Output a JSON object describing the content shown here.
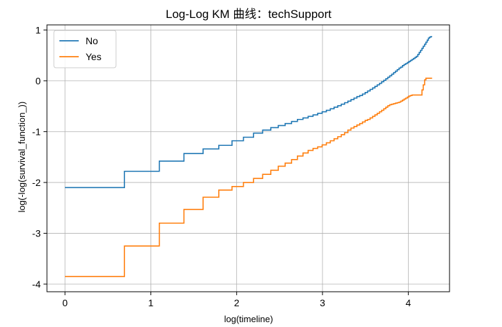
{
  "chart_data": {
    "type": "line",
    "step": true,
    "title": "Log-Log KM 曲线：techSupport",
    "xlabel": "log(timeline)",
    "ylabel": "log(-log(survival_function_))",
    "xlim": [
      -0.21,
      4.48
    ],
    "ylim": [
      -4.15,
      1.1
    ],
    "xticks": [
      0,
      1,
      2,
      3,
      4
    ],
    "xtick_labels": [
      "0",
      "1",
      "2",
      "3",
      "4"
    ],
    "yticks": [
      -4,
      -3,
      -2,
      -1,
      0,
      1
    ],
    "ytick_labels": [
      "-4",
      "-3",
      "-2",
      "-1",
      "0",
      "1"
    ],
    "grid": true,
    "legend": {
      "placement": "top-left",
      "entries": [
        "No",
        "Yes"
      ]
    },
    "series": [
      {
        "name": "No",
        "color": "#1f77b4",
        "x": [
          0.0,
          0.693,
          1.099,
          1.386,
          1.609,
          1.792,
          1.946,
          2.079,
          2.197,
          2.303,
          2.398,
          2.485,
          2.565,
          2.64,
          2.708,
          2.773,
          2.833,
          2.89,
          2.944,
          2.996,
          3.045,
          3.091,
          3.135,
          3.178,
          3.219,
          3.258,
          3.296,
          3.332,
          3.367,
          3.401,
          3.434,
          3.466,
          3.497,
          3.526,
          3.555,
          3.584,
          3.611,
          3.638,
          3.664,
          3.689,
          3.714,
          3.738,
          3.761,
          3.784,
          3.807,
          3.829,
          3.85,
          3.871,
          3.892,
          3.912,
          3.932,
          3.951,
          3.97,
          3.989,
          4.007,
          4.025,
          4.043,
          4.06,
          4.078,
          4.094,
          4.111,
          4.127,
          4.143,
          4.159,
          4.174,
          4.19,
          4.205,
          4.22,
          4.234,
          4.248,
          4.263,
          4.277
        ],
        "y": [
          -2.1,
          -1.78,
          -1.58,
          -1.43,
          -1.34,
          -1.27,
          -1.18,
          -1.11,
          -1.03,
          -0.97,
          -0.92,
          -0.88,
          -0.84,
          -0.8,
          -0.76,
          -0.73,
          -0.7,
          -0.67,
          -0.64,
          -0.61,
          -0.58,
          -0.55,
          -0.52,
          -0.49,
          -0.46,
          -0.43,
          -0.4,
          -0.37,
          -0.34,
          -0.31,
          -0.29,
          -0.26,
          -0.23,
          -0.2,
          -0.17,
          -0.14,
          -0.11,
          -0.08,
          -0.05,
          -0.02,
          0.01,
          0.04,
          0.07,
          0.1,
          0.13,
          0.16,
          0.19,
          0.22,
          0.25,
          0.27,
          0.3,
          0.32,
          0.34,
          0.36,
          0.38,
          0.4,
          0.42,
          0.44,
          0.46,
          0.48,
          0.52,
          0.56,
          0.6,
          0.64,
          0.68,
          0.72,
          0.76,
          0.8,
          0.84,
          0.86,
          0.87,
          0.87
        ]
      },
      {
        "name": "Yes",
        "color": "#ff7f0e",
        "x": [
          0.0,
          0.693,
          1.099,
          1.386,
          1.609,
          1.792,
          1.946,
          2.079,
          2.197,
          2.303,
          2.398,
          2.485,
          2.565,
          2.64,
          2.708,
          2.773,
          2.833,
          2.89,
          2.944,
          2.996,
          3.045,
          3.091,
          3.135,
          3.178,
          3.219,
          3.258,
          3.296,
          3.332,
          3.367,
          3.401,
          3.434,
          3.466,
          3.497,
          3.526,
          3.555,
          3.584,
          3.611,
          3.638,
          3.664,
          3.689,
          3.714,
          3.738,
          3.761,
          3.784,
          3.807,
          3.829,
          3.85,
          3.871,
          3.892,
          3.912,
          3.932,
          3.951,
          3.97,
          3.989,
          4.007,
          4.025,
          4.043,
          4.06,
          4.078,
          4.094,
          4.111,
          4.127,
          4.143,
          4.159,
          4.174,
          4.19,
          4.205,
          4.22,
          4.234,
          4.248,
          4.263,
          4.277
        ],
        "y": [
          -3.85,
          -3.25,
          -2.8,
          -2.53,
          -2.29,
          -2.15,
          -2.08,
          -2.0,
          -1.92,
          -1.84,
          -1.76,
          -1.68,
          -1.62,
          -1.55,
          -1.48,
          -1.42,
          -1.37,
          -1.33,
          -1.3,
          -1.26,
          -1.22,
          -1.18,
          -1.14,
          -1.1,
          -1.06,
          -1.02,
          -0.97,
          -0.93,
          -0.9,
          -0.87,
          -0.84,
          -0.81,
          -0.78,
          -0.76,
          -0.73,
          -0.7,
          -0.67,
          -0.64,
          -0.61,
          -0.58,
          -0.55,
          -0.52,
          -0.49,
          -0.47,
          -0.46,
          -0.45,
          -0.44,
          -0.43,
          -0.42,
          -0.4,
          -0.38,
          -0.36,
          -0.34,
          -0.32,
          -0.3,
          -0.29,
          -0.28,
          -0.28,
          -0.28,
          -0.28,
          -0.28,
          -0.28,
          -0.28,
          -0.18,
          -0.08,
          0.02,
          0.05,
          0.05,
          0.05,
          0.05,
          0.05,
          0.05
        ]
      }
    ]
  }
}
